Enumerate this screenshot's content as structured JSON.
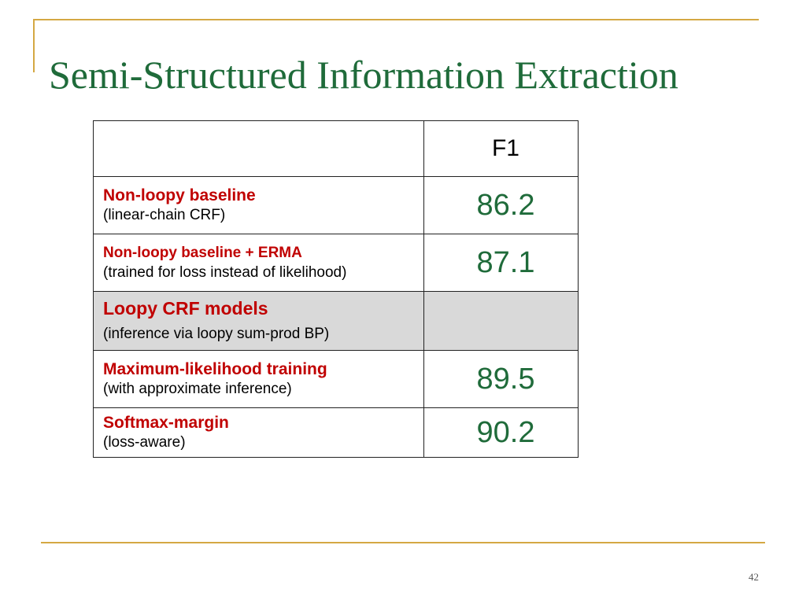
{
  "slide": {
    "title": "Semi-Structured Information Extraction",
    "page_number": "42",
    "accent_color": "#d4a843",
    "title_color": "#1f6b3a",
    "label_color": "#c00000"
  },
  "table": {
    "header_col2": "F1",
    "rows": [
      {
        "name": "Non-loopy baseline",
        "note": "(linear-chain CRF)",
        "f1": "86.2"
      },
      {
        "name": "Non-loopy baseline + ERMA",
        "note": "(trained for loss instead of likelihood)",
        "f1": "87.1"
      },
      {
        "name": "Loopy CRF models",
        "note": "(inference via loopy sum-prod BP)",
        "f1": ""
      },
      {
        "name": "Maximum-likelihood training",
        "note": "(with approximate inference)",
        "f1": "89.5"
      },
      {
        "name": "Softmax-margin",
        "note": "(loss-aware)",
        "f1": "90.2"
      }
    ]
  }
}
